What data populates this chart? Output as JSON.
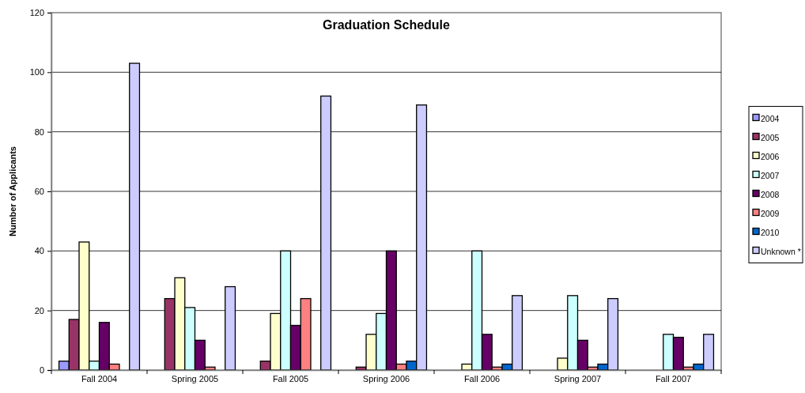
{
  "chart_data": {
    "type": "bar",
    "title": "Graduation Schedule",
    "ylabel": "Number of Applicants",
    "categories": [
      "Fall 2004",
      "Spring 2005",
      "Fall 2005",
      "Spring 2006",
      "Fall 2006",
      "Spring 2007",
      "Fall 2007"
    ],
    "series": [
      {
        "name": "2004",
        "color": "#9999ff",
        "values": [
          3,
          0,
          0,
          0,
          0,
          0,
          0
        ]
      },
      {
        "name": "2005",
        "color": "#993366",
        "values": [
          17,
          24,
          3,
          1,
          0,
          0,
          0
        ]
      },
      {
        "name": "2006",
        "color": "#ffffcc",
        "values": [
          43,
          31,
          19,
          12,
          2,
          4,
          0
        ]
      },
      {
        "name": "2007",
        "color": "#ccffff",
        "values": [
          3,
          21,
          40,
          19,
          40,
          25,
          12
        ]
      },
      {
        "name": "2008",
        "color": "#660066",
        "values": [
          16,
          10,
          15,
          40,
          12,
          10,
          11
        ]
      },
      {
        "name": "2009",
        "color": "#ff8080",
        "values": [
          2,
          1,
          24,
          2,
          1,
          1,
          1
        ]
      },
      {
        "name": "2010",
        "color": "#0066cc",
        "values": [
          0,
          0,
          0,
          3,
          2,
          2,
          2
        ]
      },
      {
        "name": "Unknown *",
        "color": "#ccccff",
        "values": [
          103,
          28,
          92,
          89,
          25,
          24,
          12
        ]
      }
    ],
    "ylim": [
      0,
      120
    ],
    "yticks": [
      0,
      20,
      40,
      60,
      80,
      100,
      120
    ],
    "grid": "y",
    "legend": "right"
  }
}
